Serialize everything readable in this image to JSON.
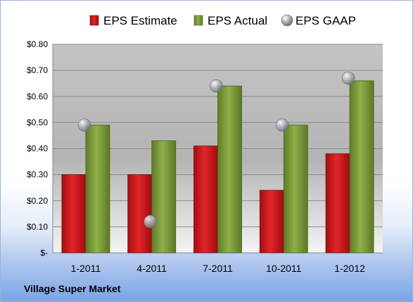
{
  "company": "Village Super Market",
  "colors": {
    "estimate": "#c8191e",
    "actual": "#7f9f3c",
    "gaap": "#b0b4bc"
  },
  "chart_data": {
    "type": "bar",
    "categories": [
      "1-2011",
      "4-2011",
      "7-2011",
      "10-2011",
      "1-2012"
    ],
    "series": [
      {
        "name": "EPS Estimate",
        "kind": "bar",
        "values": [
          0.3,
          0.3,
          0.41,
          0.24,
          0.38
        ]
      },
      {
        "name": "EPS Actual",
        "kind": "bar",
        "values": [
          0.49,
          0.43,
          0.64,
          0.49,
          0.66
        ]
      },
      {
        "name": "EPS GAAP",
        "kind": "marker",
        "values": [
          0.49,
          0.12,
          0.64,
          0.49,
          0.67
        ]
      }
    ],
    "ylim": [
      0,
      0.8
    ],
    "yticks": [
      0,
      0.1,
      0.2,
      0.3,
      0.4,
      0.5,
      0.6,
      0.7,
      0.8
    ],
    "ytick_labels": [
      "$-",
      "$0.10",
      "$0.20",
      "$0.30",
      "$0.40",
      "$0.50",
      "$0.60",
      "$0.70",
      "$0.80"
    ],
    "legend_position": "top",
    "grid": true
  }
}
